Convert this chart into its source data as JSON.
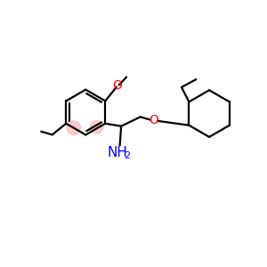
{
  "background": "#ffffff",
  "bond_color": "#000000",
  "oxygen_color": "#ff0000",
  "nitrogen_color": "#0000ff",
  "highlight_color": "#ffaaaa",
  "highlight_alpha": 0.6,
  "figsize": [
    3.0,
    3.0
  ],
  "dpi": 100,
  "xlim": [
    0.0,
    10.0
  ],
  "ylim": [
    0.5,
    8.5
  ]
}
